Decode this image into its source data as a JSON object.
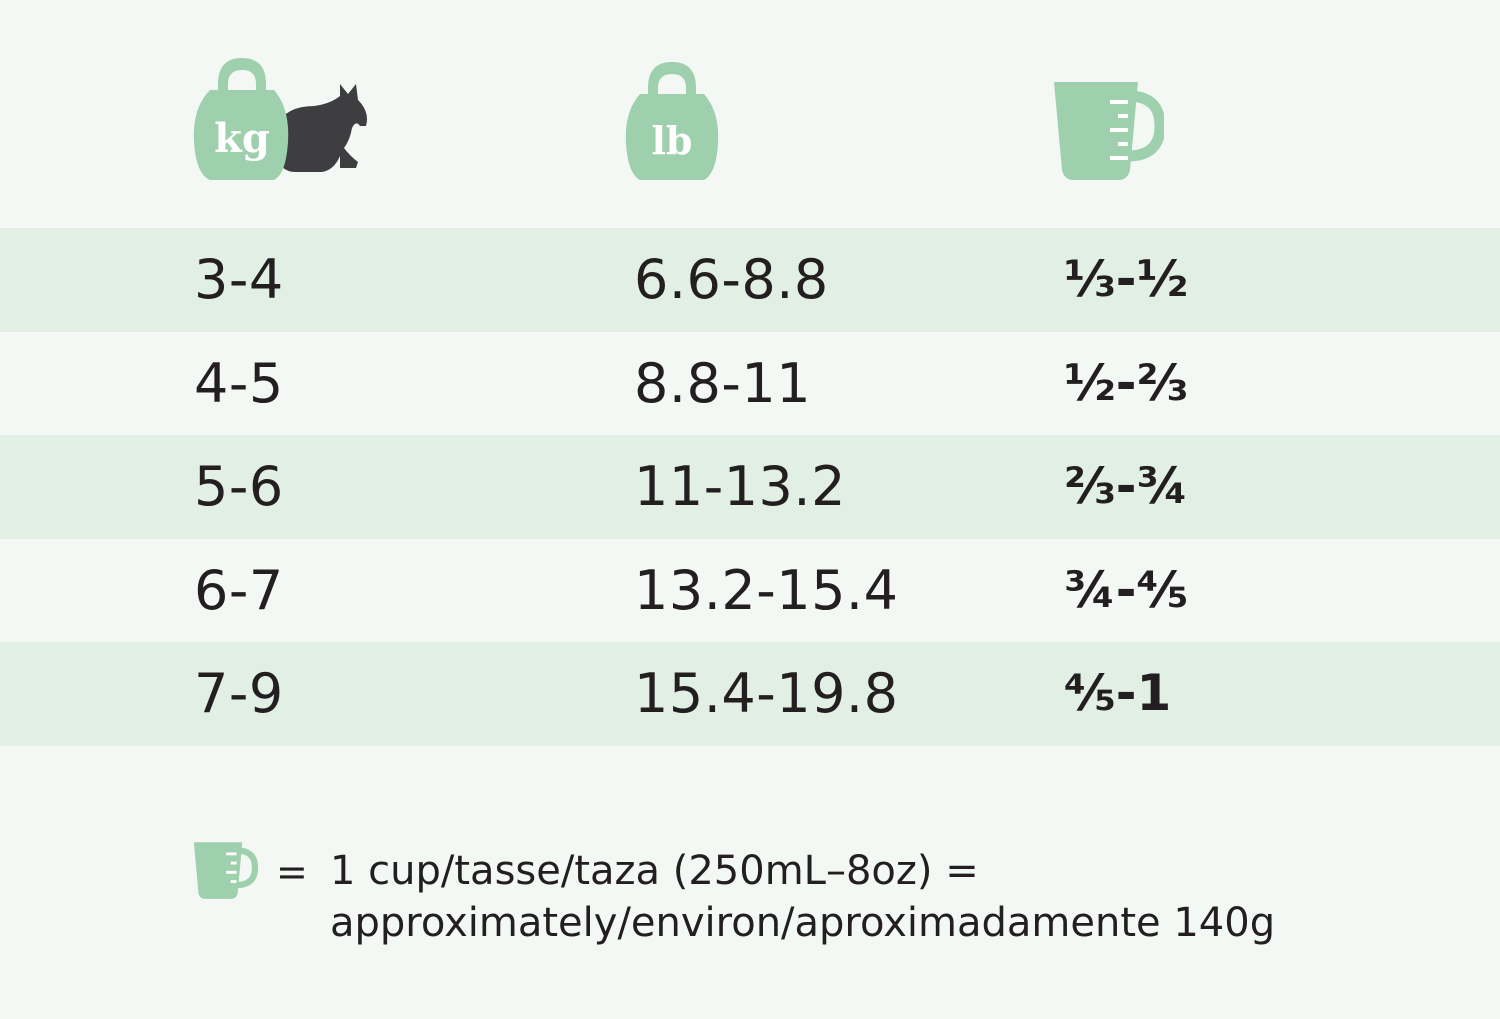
{
  "header": {
    "kg_icon_label": "kg",
    "lb_icon_label": "lb",
    "icons": [
      "kettlebell-kg-icon",
      "cat-silhouette-icon",
      "kettlebell-lb-icon",
      "measuring-cup-icon"
    ]
  },
  "colors": {
    "background": "#f4f8f5",
    "row_shade": "#e1efe5",
    "accent_green": "#9fd0ad",
    "cat_gray": "#3e3e40",
    "text": "#231f20"
  },
  "rows": [
    {
      "kg": "3-4",
      "lb": "6.6-8.8",
      "cup": "⅓-½"
    },
    {
      "kg": "4-5",
      "lb": "8.8-11",
      "cup": "½-⅔"
    },
    {
      "kg": "5-6",
      "lb": "11-13.2",
      "cup": "⅔-¾"
    },
    {
      "kg": "6-7",
      "lb": "13.2-15.4",
      "cup": "¾-⅘"
    },
    {
      "kg": "7-9",
      "lb": "15.4-19.8",
      "cup": "⅘-1"
    }
  ],
  "footer": {
    "equals": "=",
    "line1": "1 cup/tasse/taza (250mL–8oz) =",
    "line2": "approximately/environ/aproximadamente 140g"
  }
}
